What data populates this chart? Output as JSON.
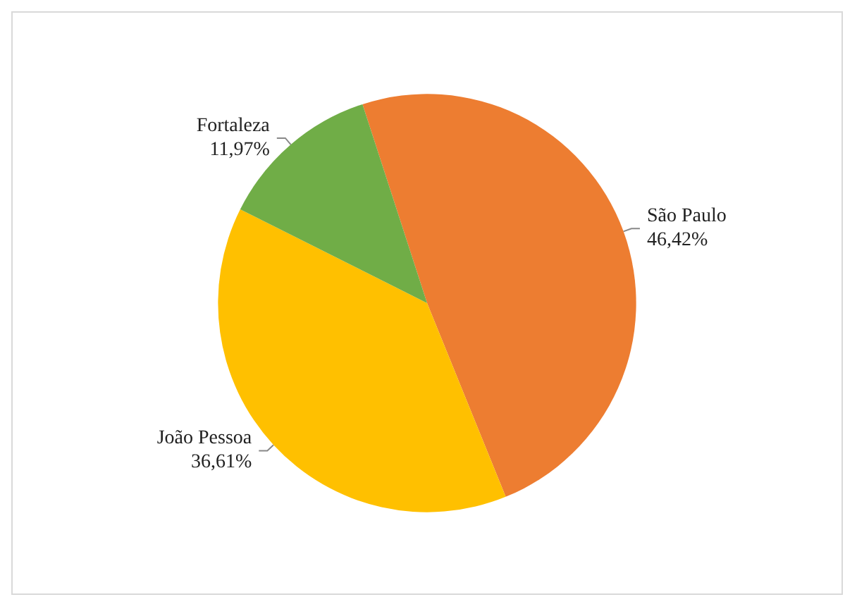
{
  "chart_data": {
    "type": "pie",
    "categories": [
      "São Paulo",
      "João Pessoa",
      "Fortaleza"
    ],
    "values": [
      46.42,
      36.61,
      11.97
    ],
    "value_labels": [
      "46,42%",
      "36,61%",
      "11,97%"
    ],
    "colors": [
      "#ed7d31",
      "#ffc000",
      "#70ad47"
    ],
    "legend": false
  }
}
